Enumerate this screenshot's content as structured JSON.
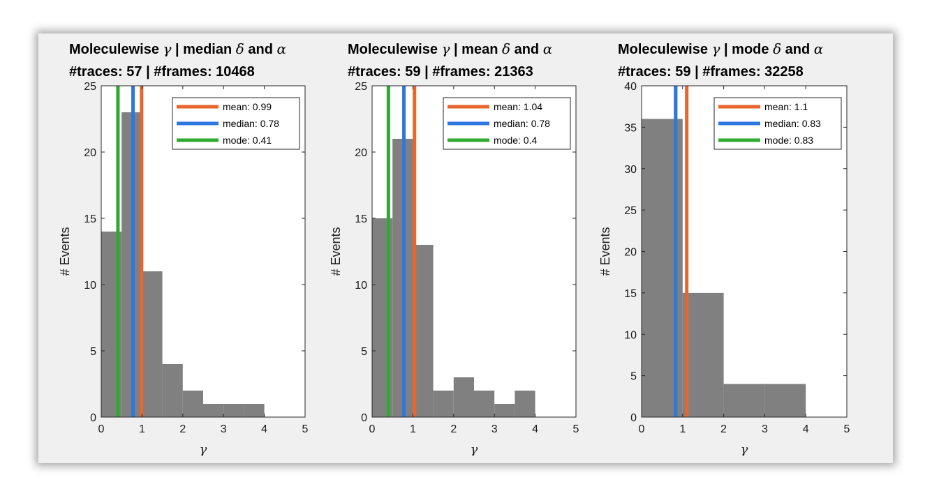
{
  "chart_data": [
    {
      "type": "bar",
      "title_line1_prefix": "Moleculewise ",
      "title_gamma": "γ",
      "title_mid": " | median ",
      "title_delta": "δ",
      "title_and": " and ",
      "title_alpha": "α",
      "title_line2": "#traces: 57 | #frames: 10468",
      "xlabel": "γ",
      "ylabel": "# Events",
      "xlim": [
        0,
        5
      ],
      "ylim": [
        0,
        25
      ],
      "xticks": [
        "0",
        "1",
        "2",
        "3",
        "4",
        "5"
      ],
      "yticks": [
        "0",
        "5",
        "10",
        "15",
        "20",
        "25"
      ],
      "bins": [
        [
          0,
          0.5
        ],
        [
          0.5,
          1
        ],
        [
          1,
          1.5
        ],
        [
          1.5,
          2
        ],
        [
          2,
          2.5
        ],
        [
          2.5,
          3
        ],
        [
          3,
          3.5
        ],
        [
          3.5,
          4
        ]
      ],
      "values": [
        14,
        23,
        11,
        4,
        2,
        1,
        1,
        1
      ],
      "bar_color": "#808080",
      "lines": [
        {
          "name": "mean: 0.99",
          "x": 0.99,
          "color": "#e8662e"
        },
        {
          "name": "median: 0.78",
          "x": 0.78,
          "color": "#2d77e0"
        },
        {
          "name": "mode: 0.41",
          "x": 0.41,
          "color": "#2eaa2e"
        }
      ],
      "legend_position": "top-right",
      "grid": false
    },
    {
      "type": "bar",
      "title_line1_prefix": "Moleculewise ",
      "title_gamma": "γ",
      "title_mid": " | mean ",
      "title_delta": "δ",
      "title_and": " and ",
      "title_alpha": "α",
      "title_line2": "#traces: 59 | #frames: 21363",
      "xlabel": "γ",
      "ylabel": "# Events",
      "xlim": [
        0,
        5
      ],
      "ylim": [
        0,
        25
      ],
      "xticks": [
        "0",
        "1",
        "2",
        "3",
        "4",
        "5"
      ],
      "yticks": [
        "0",
        "5",
        "10",
        "15",
        "20",
        "25"
      ],
      "bins": [
        [
          0,
          0.5
        ],
        [
          0.5,
          1
        ],
        [
          1,
          1.5
        ],
        [
          1.5,
          2
        ],
        [
          2,
          2.5
        ],
        [
          2.5,
          3
        ],
        [
          3,
          3.5
        ],
        [
          3.5,
          4
        ]
      ],
      "values": [
        15,
        21,
        13,
        2,
        3,
        2,
        1,
        2
      ],
      "bar_color": "#808080",
      "lines": [
        {
          "name": "mean: 1.04",
          "x": 1.04,
          "color": "#e8662e"
        },
        {
          "name": "median: 0.78",
          "x": 0.78,
          "color": "#2d77e0"
        },
        {
          "name": "mode: 0.4",
          "x": 0.4,
          "color": "#2eaa2e"
        }
      ],
      "legend_position": "top-right",
      "grid": false
    },
    {
      "type": "bar",
      "title_line1_prefix": "Moleculewise ",
      "title_gamma": "γ",
      "title_mid": " | mode ",
      "title_delta": "δ",
      "title_and": " and ",
      "title_alpha": "α",
      "title_line2": "#traces: 59 | #frames: 32258",
      "xlabel": "γ",
      "ylabel": "# Events",
      "xlim": [
        0,
        5
      ],
      "ylim": [
        0,
        40
      ],
      "xticks": [
        "0",
        "1",
        "2",
        "3",
        "4",
        "5"
      ],
      "yticks": [
        "0",
        "5",
        "10",
        "15",
        "20",
        "25",
        "30",
        "35",
        "40"
      ],
      "bins": [
        [
          0,
          1
        ],
        [
          1,
          2
        ],
        [
          2,
          3
        ],
        [
          3,
          4
        ]
      ],
      "values": [
        36,
        15,
        4,
        4
      ],
      "bar_color": "#808080",
      "lines": [
        {
          "name": "mean: 1.1",
          "x": 1.1,
          "color": "#e8662e"
        },
        {
          "name": "median: 0.83",
          "x": 0.83,
          "color": "#2d77e0"
        },
        {
          "name": "mode: 0.83",
          "x": 0.83,
          "color": "#2eaa2e"
        }
      ],
      "legend_position": "top-right",
      "grid": false
    }
  ]
}
